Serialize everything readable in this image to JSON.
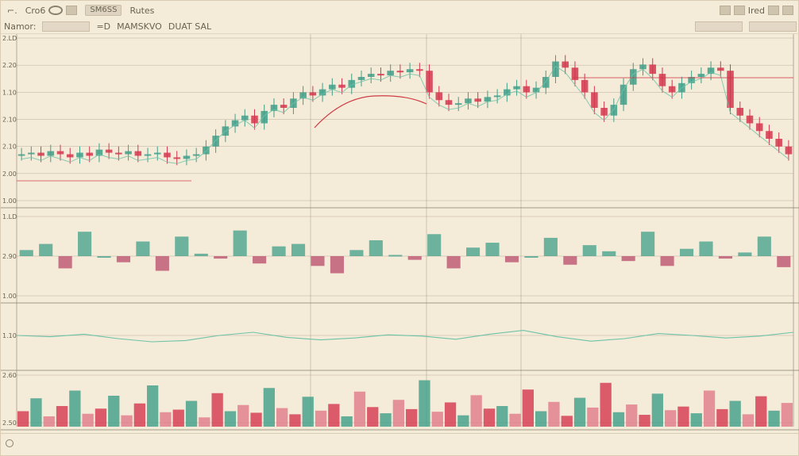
{
  "toolbar": {
    "menu_glyph": "⌐.",
    "item1": "Cro6",
    "item2": "SM6SS",
    "item3": "Rutes",
    "right_item": "Ired"
  },
  "subbar": {
    "label": "Namor:",
    "field1": "",
    "tag1": "=D",
    "tag2": "MAMSKVO",
    "tag3": "DUAT SAL"
  },
  "colors": {
    "background": "#f4ebd8",
    "up": "#3f9f8a",
    "down": "#d4374f",
    "trend": "#cf3a45",
    "grid": "#8a7f6c",
    "accent_line": "#6cc3a8"
  },
  "chart_data": [
    {
      "type": "line",
      "panel": "price",
      "title": "",
      "xlabel": "",
      "ylabel": "",
      "y_ticks": [
        "2.LD",
        "2.20",
        "1.10",
        "2.10",
        "2.10",
        "2.00",
        "1.00"
      ],
      "grid": true,
      "series": [
        {
          "values": [
            0.3,
            0.31,
            0.29,
            0.32,
            0.3,
            0.28,
            0.31,
            0.29,
            0.33,
            0.31,
            0.3,
            0.32,
            0.29,
            0.3,
            0.31,
            0.28,
            0.27,
            0.29,
            0.3,
            0.35,
            0.42,
            0.48,
            0.52,
            0.55,
            0.5,
            0.58,
            0.62,
            0.6,
            0.66,
            0.7,
            0.68,
            0.72,
            0.75,
            0.73,
            0.78,
            0.8,
            0.82,
            0.81,
            0.84,
            0.83,
            0.85,
            0.84,
            0.7,
            0.65,
            0.62,
            0.63,
            0.66,
            0.64,
            0.67,
            0.68,
            0.72,
            0.74,
            0.7,
            0.73,
            0.8,
            0.9,
            0.86,
            0.78,
            0.7,
            0.6,
            0.55,
            0.62,
            0.75,
            0.85,
            0.88,
            0.82,
            0.74,
            0.7,
            0.76,
            0.8,
            0.82,
            0.86,
            0.84,
            0.6,
            0.55,
            0.5,
            0.45,
            0.4,
            0.35,
            0.3
          ]
        }
      ]
    },
    {
      "type": "line",
      "panel": "oscillator",
      "y_ticks": [
        "1.LD",
        "2.90",
        "1.00"
      ],
      "series": [
        {
          "values": [
            0.55,
            0.6,
            0.4,
            0.7,
            0.5,
            0.45,
            0.62,
            0.38,
            0.66,
            0.52,
            0.48,
            0.71,
            0.44,
            0.58,
            0.6,
            0.42,
            0.36,
            0.55,
            0.63,
            0.51,
            0.47,
            0.68,
            0.4,
            0.57,
            0.61,
            0.45,
            0.5,
            0.65,
            0.43,
            0.59,
            0.54,
            0.46,
            0.7,
            0.42,
            0.56,
            0.62,
            0.48,
            0.53,
            0.66,
            0.41
          ]
        }
      ]
    },
    {
      "type": "line",
      "panel": "signal",
      "y_ticks": [
        "1.10"
      ],
      "series": [
        {
          "values": [
            0.5,
            0.48,
            0.52,
            0.45,
            0.4,
            0.42,
            0.5,
            0.55,
            0.47,
            0.43,
            0.46,
            0.51,
            0.49,
            0.44,
            0.52,
            0.58,
            0.48,
            0.41,
            0.45,
            0.53,
            0.5,
            0.46,
            0.49,
            0.55
          ]
        }
      ]
    },
    {
      "type": "bar",
      "panel": "volume",
      "y_ticks": [
        "2.60",
        "2.50"
      ],
      "values": [
        0.3,
        0.55,
        0.2,
        0.4,
        0.7,
        0.25,
        0.35,
        0.6,
        0.22,
        0.45,
        0.8,
        0.28,
        0.33,
        0.5,
        0.18,
        0.65,
        0.3,
        0.42,
        0.27,
        0.75,
        0.36,
        0.24,
        0.58,
        0.31,
        0.44,
        0.2,
        0.68,
        0.38,
        0.26,
        0.52,
        0.34,
        0.9,
        0.29,
        0.47,
        0.22,
        0.61,
        0.35,
        0.4,
        0.25,
        0.72,
        0.3,
        0.48,
        0.21,
        0.56,
        0.37,
        0.85,
        0.28,
        0.43,
        0.23,
        0.64,
        0.32,
        0.39,
        0.26,
        0.7,
        0.34,
        0.5,
        0.24,
        0.59,
        0.31,
        0.46
      ]
    }
  ]
}
